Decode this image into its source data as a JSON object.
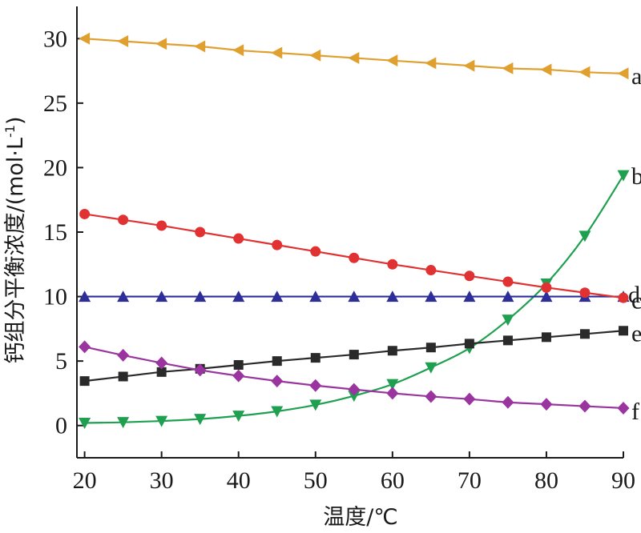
{
  "chart_data": {
    "type": "line",
    "xlabel": "温度/℃",
    "ylabel": "钙组分平衡浓度/(mol·L",
    "ylabel_sup": "-1",
    "ylabel_close": ")",
    "xlim": [
      19,
      90
    ],
    "ylim": [
      -2.5,
      32.5
    ],
    "x_ticks": [
      20,
      30,
      40,
      50,
      60,
      70,
      80,
      90
    ],
    "y_ticks": [
      0,
      5,
      10,
      15,
      20,
      25,
      30
    ],
    "x": [
      20,
      25,
      30,
      35,
      40,
      45,
      50,
      55,
      60,
      65,
      70,
      75,
      80,
      85,
      90
    ],
    "series": [
      {
        "name": "a",
        "color": "#e0a030",
        "marker": "triangle-left",
        "values": [
          30.0,
          29.8,
          29.6,
          29.4,
          29.1,
          28.9,
          28.7,
          28.5,
          28.3,
          28.1,
          27.9,
          27.7,
          27.6,
          27.4,
          27.3
        ]
      },
      {
        "name": "b",
        "color": "#1fa050",
        "marker": "triangle-down",
        "values": [
          0.2,
          0.25,
          0.35,
          0.5,
          0.75,
          1.1,
          1.6,
          2.3,
          3.2,
          4.5,
          6.0,
          8.2,
          11.0,
          14.7,
          19.4
        ]
      },
      {
        "name": "c",
        "color": "#2e2e99",
        "marker": "triangle-up",
        "values": [
          10.0,
          10.0,
          10.0,
          10.0,
          10.0,
          10.0,
          10.0,
          10.0,
          10.0,
          10.0,
          10.0,
          10.0,
          10.0,
          10.0,
          10.0
        ]
      },
      {
        "name": "d",
        "color": "#e03232",
        "marker": "circle",
        "values": [
          16.4,
          15.95,
          15.5,
          15.0,
          14.5,
          14.0,
          13.5,
          13.0,
          12.5,
          12.05,
          11.6,
          11.15,
          10.7,
          10.3,
          9.9
        ]
      },
      {
        "name": "e",
        "color": "#2a2a2a",
        "marker": "square",
        "values": [
          3.45,
          3.8,
          4.15,
          4.4,
          4.7,
          5.0,
          5.25,
          5.5,
          5.8,
          6.05,
          6.35,
          6.6,
          6.85,
          7.1,
          7.35
        ]
      },
      {
        "name": "f",
        "color": "#9a35a0",
        "marker": "diamond",
        "values": [
          6.1,
          5.45,
          4.85,
          4.3,
          3.85,
          3.45,
          3.1,
          2.8,
          2.5,
          2.25,
          2.05,
          1.8,
          1.65,
          1.5,
          1.35
        ]
      }
    ]
  }
}
